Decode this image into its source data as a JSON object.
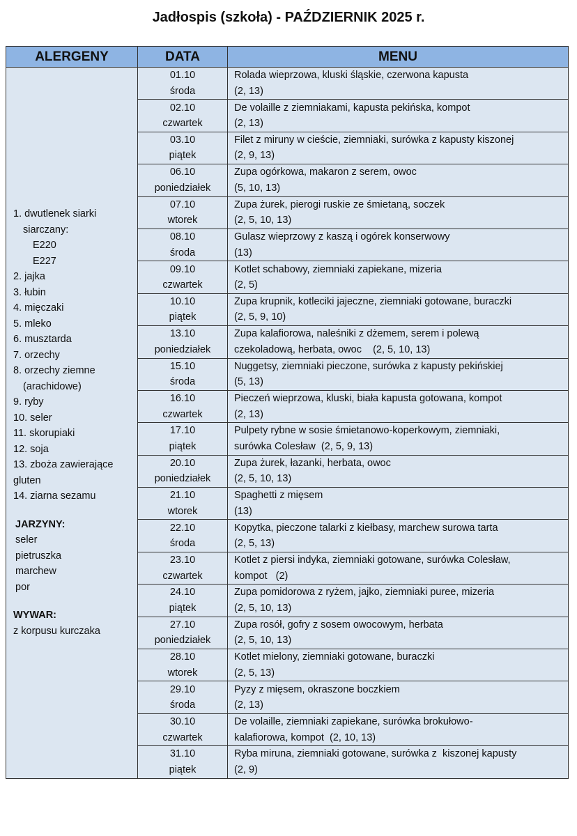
{
  "title": "Jadłospis (szkoła) - PAŹDZIERNIK  2025 r.",
  "headers": {
    "allergens": "ALERGENY",
    "date": "DATA",
    "menu": "MENU"
  },
  "allergens": {
    "items": [
      {
        "text": "1. dwutlenek siarki",
        "indent": 0
      },
      {
        "text": "siarczany:",
        "indent": 1
      },
      {
        "text": "E220",
        "indent": 2
      },
      {
        "text": "E227",
        "indent": 2
      },
      {
        "text": "2. jajka",
        "indent": 0
      },
      {
        "text": "3. łubin",
        "indent": 0
      },
      {
        "text": "4. mięczaki",
        "indent": 0
      },
      {
        "text": "5. mleko",
        "indent": 0
      },
      {
        "text": "6. musztarda",
        "indent": 0
      },
      {
        "text": "7. orzechy",
        "indent": 0
      },
      {
        "text": "8. orzechy ziemne",
        "indent": 0
      },
      {
        "text": "(arachidowe)",
        "indent": 1
      },
      {
        "text": "9. ryby",
        "indent": 0
      },
      {
        "text": "10. seler",
        "indent": 0
      },
      {
        "text": "11. skorupiaki",
        "indent": 0
      },
      {
        "text": "12. soja",
        "indent": 0
      },
      {
        "text": "13. zboża zawierające",
        "indent": 0
      },
      {
        "text": "gluten",
        "indent": 0
      },
      {
        "text": "14. ziarna sezamu",
        "indent": 0
      }
    ],
    "vegetables_title": "JARZYNY:",
    "vegetables": [
      "seler",
      "pietruszka",
      "marchew",
      "por"
    ],
    "broth_title": "WYWAR:",
    "broth": "z korpusu kurczaka"
  },
  "rows": [
    {
      "date": "01.10",
      "day": "środa",
      "line1": "Rolada wieprzowa, kluski śląskie, czerwona kapusta",
      "line2": "(2, 13)"
    },
    {
      "date": "02.10",
      "day": "czwartek",
      "line1": "De volaille z ziemniakami, kapusta pekińska, kompot",
      "line2": "(2, 13)"
    },
    {
      "date": "03.10",
      "day": "piątek",
      "line1": "Filet z miruny w cieście, ziemniaki, surówka z kapusty kiszonej",
      "line2": "(2, 9, 13)"
    },
    {
      "date": "06.10",
      "day": "poniedziałek",
      "line1": "Zupa ogórkowa, makaron z serem, owoc",
      "line2": "(5, 10, 13)"
    },
    {
      "date": "07.10",
      "day": "wtorek",
      "line1": "Zupa żurek, pierogi ruskie ze śmietaną, soczek",
      "line2": "(2, 5, 10, 13)"
    },
    {
      "date": "08.10",
      "day": "środa",
      "line1": "Gulasz wieprzowy z kaszą i ogórek konserwowy",
      "line2": "(13)"
    },
    {
      "date": "09.10",
      "day": "czwartek",
      "line1": "Kotlet schabowy, ziemniaki zapiekane, mizeria",
      "line2": "(2, 5)"
    },
    {
      "date": "10.10",
      "day": "piątek",
      "line1": "Zupa krupnik, kotleciki jajeczne, ziemniaki gotowane, buraczki",
      "line2": "(2, 5, 9, 10)"
    },
    {
      "date": "13.10",
      "day": "poniedziałek",
      "line1": "Zupa kalafiorowa, naleśniki z dżemem, serem i polewą",
      "line2": "czekoladową, herbata, owoc    (2, 5, 10, 13)"
    },
    {
      "date": "15.10",
      "day": "środa",
      "line1": "Nuggetsy, ziemniaki pieczone, surówka z kapusty pekińskiej",
      "line2": "(5, 13)"
    },
    {
      "date": "16.10",
      "day": "czwartek",
      "line1": "Pieczeń wieprzowa, kluski, biała kapusta gotowana, kompot",
      "line2": "(2, 13)"
    },
    {
      "date": "17.10",
      "day": "piątek",
      "line1": "Pulpety rybne w sosie śmietanowo-koperkowym, ziemniaki,",
      "line2": "surówka Colesław  (2, 5, 9, 13)"
    },
    {
      "date": "20.10",
      "day": "poniedziałek",
      "line1": "Zupa żurek, łazanki, herbata, owoc",
      "line2": "(2, 5, 10, 13)"
    },
    {
      "date": "21.10",
      "day": "wtorek",
      "line1": "Spaghetti z mięsem",
      "line2": "(13)"
    },
    {
      "date": "22.10",
      "day": "środa",
      "line1": "Kopytka, pieczone talarki z kiełbasy, marchew surowa tarta",
      "line2": "(2, 5, 13)"
    },
    {
      "date": "23.10",
      "day": "czwartek",
      "line1": "Kotlet z piersi indyka, ziemniaki gotowane, surówka Colesław,",
      "line2": "kompot   (2)"
    },
    {
      "date": "24.10",
      "day": "piątek",
      "line1": "Zupa pomidorowa z ryżem, jajko, ziemniaki puree, mizeria",
      "line2": "(2, 5, 10, 13)"
    },
    {
      "date": "27.10",
      "day": "poniedziałek",
      "line1": "Zupa rosół, gofry z sosem owocowym, herbata",
      "line2": "(2, 5, 10, 13)"
    },
    {
      "date": "28.10",
      "day": "wtorek",
      "line1": "Kotlet mielony, ziemniaki gotowane, buraczki",
      "line2": "(2, 5, 13)"
    },
    {
      "date": "29.10",
      "day": "środa",
      "line1": "Pyzy z mięsem, okraszone boczkiem",
      "line2": "(2, 13)"
    },
    {
      "date": "30.10",
      "day": "czwartek",
      "line1": "De volaille, ziemniaki zapiekane, surówka brokułowo-",
      "line2": "kalafiorowa, kompot  (2, 10, 13)"
    },
    {
      "date": "31.10",
      "day": "piątek",
      "line1": "Ryba miruna, ziemniaki gotowane, surówka z  kiszonej kapusty",
      "line2": "(2, 9)"
    }
  ],
  "colors": {
    "header_bg": "#8eb4e3",
    "cell_bg": "#dce6f1",
    "border": "#333333"
  }
}
